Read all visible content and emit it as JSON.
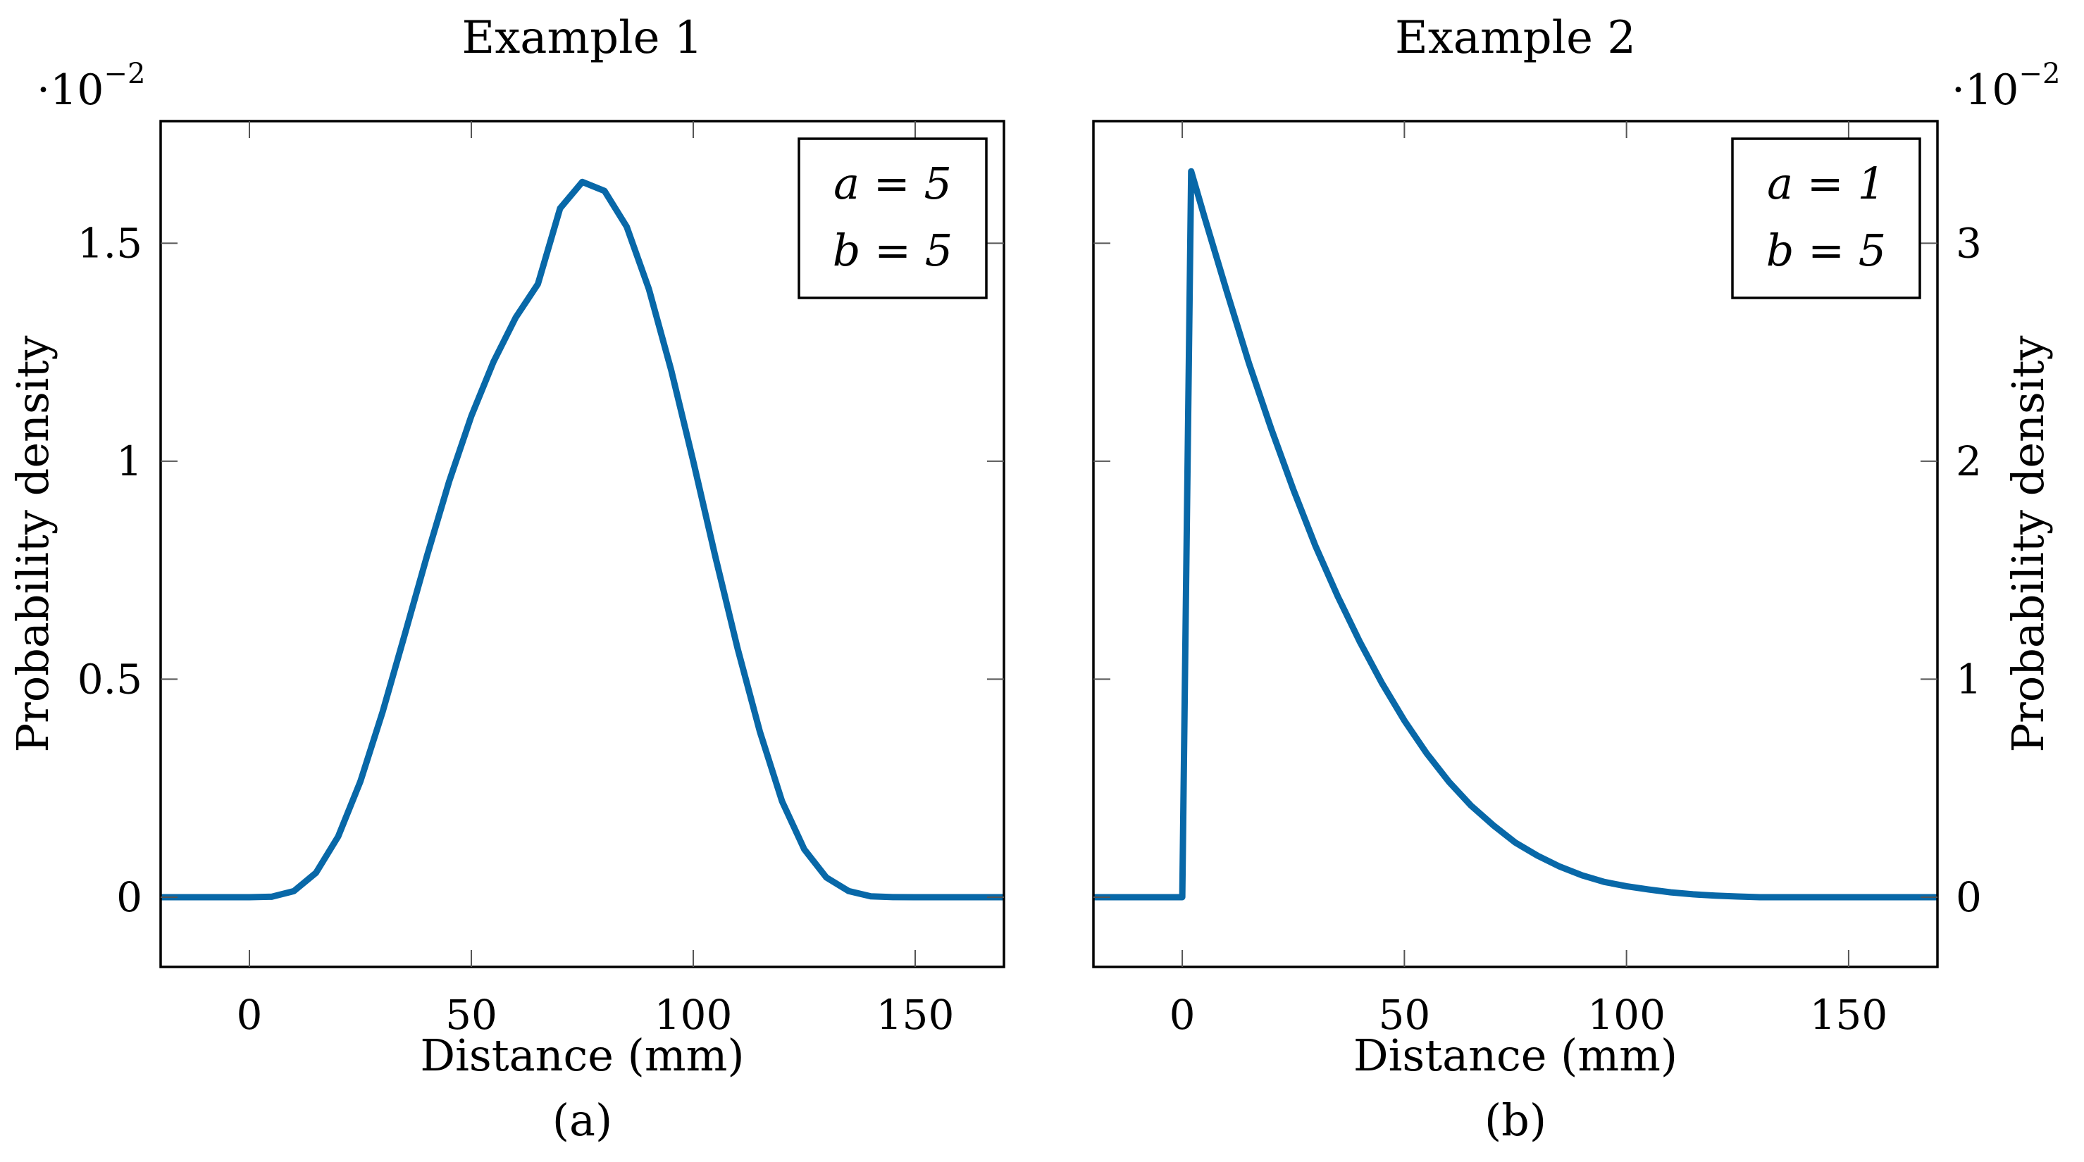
{
  "chart_data": [
    {
      "type": "line",
      "title": "Example 1",
      "caption": "(a)",
      "xlabel": "Distance (mm)",
      "ylabel": "Probability density",
      "y_multiplier": "·10",
      "y_multiplier_exp": "−2",
      "xlim": [
        -20,
        170
      ],
      "ylim": [
        -0.16,
        1.78
      ],
      "xticks": [
        0,
        50,
        100,
        150
      ],
      "xtick_labels": [
        "0",
        "50",
        "100",
        "150"
      ],
      "yticks": [
        0,
        0.5,
        1,
        1.5
      ],
      "ytick_labels": [
        "0",
        "0.5",
        "1",
        "1.5"
      ],
      "yaxis_side": "left",
      "legend_lines": [
        "a = 5",
        "b = 5"
      ],
      "legend_position": "top-right",
      "grid": false,
      "color": "#0868a8",
      "series": [
        {
          "x": [
            -20,
            0,
            5,
            10,
            15,
            20,
            25,
            30,
            35,
            40,
            45,
            50,
            55,
            60,
            65,
            70,
            75,
            80,
            85,
            90,
            95,
            100,
            105,
            110,
            115,
            120,
            125,
            130,
            135,
            140,
            145,
            150,
            170
          ],
          "y": [
            0,
            0,
            0.001,
            0.0138,
            0.0558,
            0.1391,
            0.2653,
            0.4246,
            0.6024,
            0.7825,
            0.9535,
            1.1035,
            1.228,
            1.3296,
            1.4064,
            1.58,
            1.6406,
            1.62,
            1.538,
            1.395,
            1.21,
            1.0,
            0.78,
            0.57,
            0.38,
            0.22,
            0.11,
            0.045,
            0.014,
            0.002,
            0.0001,
            0,
            0
          ]
        }
      ]
    },
    {
      "type": "line",
      "title": "Example 2",
      "caption": "(b)",
      "xlabel": "Distance (mm)",
      "ylabel": "Probability density",
      "y_multiplier": "·10",
      "y_multiplier_exp": "−2",
      "xlim": [
        -20,
        170
      ],
      "ylim": [
        -0.32,
        3.56
      ],
      "xticks": [
        0,
        50,
        100,
        150
      ],
      "xtick_labels": [
        "0",
        "50",
        "100",
        "150"
      ],
      "yticks": [
        0,
        1,
        2,
        3
      ],
      "ytick_labels": [
        "0",
        "1",
        "2",
        "3"
      ],
      "yaxis_side": "right",
      "legend_lines": [
        "a = 1",
        "b = 5"
      ],
      "legend_position": "top-right",
      "grid": false,
      "color": "#0868a8",
      "series": [
        {
          "x": [
            -20,
            0,
            2,
            5,
            10,
            15,
            20,
            25,
            30,
            35,
            40,
            45,
            50,
            55,
            60,
            65,
            70,
            75,
            80,
            85,
            90,
            95,
            100,
            105,
            110,
            115,
            120,
            125,
            130,
            150,
            170
          ],
          "y": [
            0,
            0,
            3.33,
            3.12,
            2.78,
            2.45,
            2.15,
            1.87,
            1.61,
            1.38,
            1.17,
            0.98,
            0.81,
            0.66,
            0.53,
            0.42,
            0.33,
            0.25,
            0.19,
            0.14,
            0.1,
            0.07,
            0.05,
            0.035,
            0.022,
            0.013,
            0.007,
            0.003,
            0,
            0,
            0
          ]
        }
      ]
    }
  ]
}
